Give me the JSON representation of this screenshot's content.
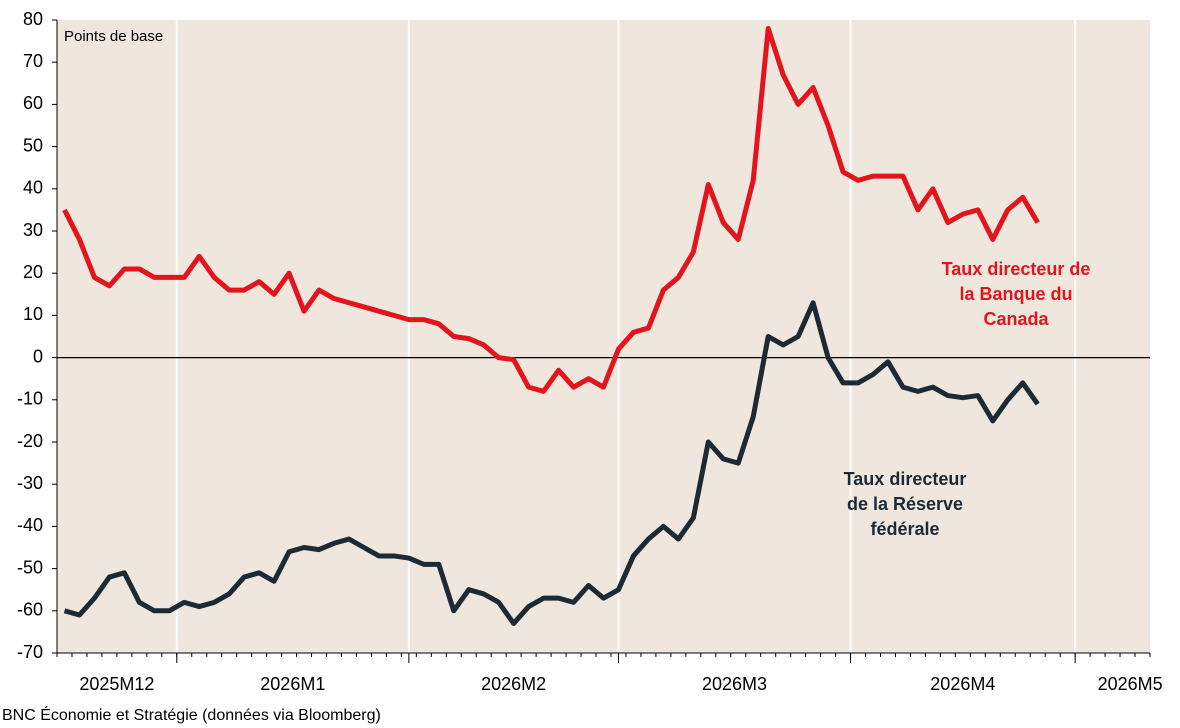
{
  "chart_data": {
    "type": "line",
    "y_label": "Points de base",
    "source": "BNC Économie et Stratégie (données via Bloomberg)",
    "x": [
      1,
      3,
      5,
      7,
      9,
      11,
      13,
      15,
      17,
      19,
      21,
      23,
      25,
      27,
      29,
      31,
      33,
      35,
      37,
      39,
      41,
      43,
      45,
      47,
      49,
      51,
      53,
      55,
      57,
      59,
      61,
      63,
      65,
      67,
      69,
      71,
      73,
      75,
      77,
      79,
      81,
      83,
      85,
      87,
      89,
      91,
      93,
      95,
      97,
      99,
      101,
      103,
      105,
      107,
      109,
      111,
      113,
      115,
      117,
      119,
      121,
      123,
      125,
      127,
      129,
      131
    ],
    "xlim": [
      0,
      146
    ],
    "xticks": [
      {
        "value": -15,
        "label": "2025M12"
      },
      {
        "value": 16,
        "label": "2026M1"
      },
      {
        "value": 47,
        "label": "2026M2"
      },
      {
        "value": 75,
        "label": "2026M3"
      },
      {
        "value": 106,
        "label": "2026M4"
      },
      {
        "value": 136,
        "label": "2026M5"
      }
    ],
    "ylim": [
      -70,
      80
    ],
    "yticks": [
      -70,
      -60,
      -50,
      -40,
      -30,
      -20,
      -10,
      0,
      10,
      20,
      30,
      40,
      50,
      60,
      70,
      80
    ],
    "grid": true,
    "series": [
      {
        "color": "#e3141c",
        "values": [
          35,
          28,
          19,
          17,
          21,
          21,
          19,
          19,
          19,
          24,
          19,
          16,
          16,
          18,
          15,
          20,
          11,
          16,
          14,
          13,
          12,
          11,
          10,
          9,
          9,
          8,
          5,
          4.5,
          3,
          0,
          -0.5,
          -7,
          -8,
          -3,
          -7,
          -5,
          -7,
          2,
          6,
          7,
          16,
          19,
          25,
          41,
          32,
          28,
          42,
          78,
          67,
          60,
          64,
          55,
          44,
          42,
          43,
          43,
          43,
          35,
          40,
          32,
          34,
          35,
          28,
          35,
          38,
          32
        ]
      },
      {
        "color": "#1c2a36",
        "values": [
          -60,
          -61,
          -57,
          -52,
          -51,
          -58,
          -60,
          -60,
          -58,
          -59,
          -58,
          -56,
          -52,
          -51,
          -53,
          -46,
          -45,
          -45.5,
          -44,
          -43,
          -45,
          -47,
          -47,
          -47.5,
          -49,
          -49,
          -60,
          -55,
          -56,
          -58,
          -63,
          -59,
          -57,
          -57,
          -58,
          -54,
          -57,
          -55,
          -47,
          -43,
          -40,
          -43,
          -38,
          -20,
          -24,
          -25,
          -14,
          5,
          3,
          5,
          13,
          0,
          -6,
          -6,
          -4,
          -1,
          -7,
          -8,
          -7,
          -9,
          -9.5,
          -9,
          -15,
          -10,
          -6,
          -11
        ]
      }
    ],
    "annotations": [
      {
        "lines": [
          "Taux directeur de",
          "la Banque du",
          "Canada"
        ],
        "color": "#e3141c"
      },
      {
        "lines": [
          "Taux directeur",
          "de la Réserve",
          "fédérale"
        ],
        "color": "#1c2a36"
      }
    ]
  }
}
